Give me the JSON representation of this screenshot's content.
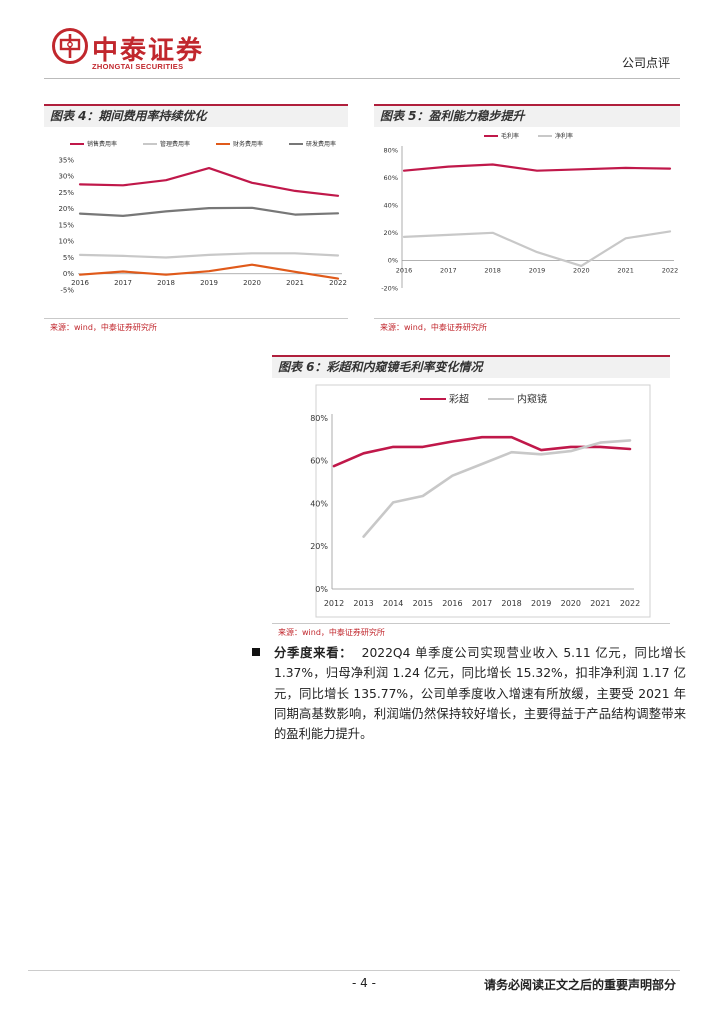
{
  "header": {
    "company_cn": "中泰证券",
    "company_en": "ZHONGTAI SECURITIES",
    "doc_type": "公司点评",
    "brand_color": "#c1272d"
  },
  "figures": {
    "fig4": {
      "title": "图表 4：期间费用率持续优化",
      "source": "来源：wind，中泰证券研究所"
    },
    "fig5": {
      "title": "图表 5：盈利能力稳步提升",
      "source": "来源：wind，中泰证券研究所"
    },
    "fig6": {
      "title": "图表 6：彩超和内窥镜毛利率变化情况",
      "source": "来源：wind，中泰证券研究所"
    }
  },
  "chart_data": [
    {
      "id": "fig4",
      "type": "line",
      "x": [
        "2016",
        "2017",
        "2018",
        "2019",
        "2020",
        "2021",
        "2022"
      ],
      "series": [
        {
          "name": "销售费用率",
          "color": "#c0184a",
          "values": [
            27.5,
            27.2,
            28.8,
            32.5,
            28.0,
            25.5,
            24.0
          ]
        },
        {
          "name": "管理费用率",
          "color": "#c8c8c8",
          "values": [
            5.8,
            5.5,
            5.0,
            5.8,
            6.3,
            6.3,
            5.6
          ]
        },
        {
          "name": "财务费用率",
          "color": "#e05a1a",
          "values": [
            -0.3,
            0.7,
            -0.3,
            0.8,
            2.8,
            0.6,
            -1.5
          ]
        },
        {
          "name": "研发费用率",
          "color": "#777777",
          "values": [
            18.5,
            17.8,
            19.2,
            20.2,
            20.3,
            18.2,
            18.6
          ]
        }
      ],
      "yticks": [
        "-5%",
        "0%",
        "5%",
        "10%",
        "15%",
        "20%",
        "25%",
        "30%",
        "35%"
      ],
      "ylim": [
        -5,
        35
      ],
      "legend": "top"
    },
    {
      "id": "fig5",
      "type": "line",
      "x": [
        "2016",
        "2017",
        "2018",
        "2019",
        "2020",
        "2021",
        "2022"
      ],
      "series": [
        {
          "name": "毛利率",
          "color": "#c0184a",
          "values": [
            65,
            68,
            69.5,
            65,
            66,
            67,
            66.5
          ]
        },
        {
          "name": "净利率",
          "color": "#c8c8c8",
          "values": [
            17,
            18.5,
            20,
            6,
            -4,
            16,
            21
          ]
        }
      ],
      "yticks": [
        "-20%",
        "0%",
        "20%",
        "40%",
        "60%",
        "80%"
      ],
      "ylim": [
        -20,
        80
      ],
      "legend": "top"
    },
    {
      "id": "fig6",
      "type": "line",
      "x": [
        "2012",
        "2013",
        "2014",
        "2015",
        "2016",
        "2017",
        "2018",
        "2019",
        "2020",
        "2021",
        "2022"
      ],
      "series": [
        {
          "name": "彩超",
          "color": "#c0184a",
          "values": [
            57.5,
            63.5,
            66.5,
            66.5,
            69,
            71,
            71,
            65,
            66.5,
            66.5,
            65.5
          ]
        },
        {
          "name": "内窥镜",
          "color": "#c8c8c8",
          "values": [
            null,
            24.5,
            40.5,
            43.5,
            53,
            58.5,
            64,
            63,
            64.5,
            68.5,
            69.5
          ]
        }
      ],
      "yticks": [
        "0%",
        "20%",
        "40%",
        "60%",
        "80%"
      ],
      "ylim": [
        0,
        80
      ],
      "legend": "top"
    }
  ],
  "paragraph": {
    "lead": "分季度来看：",
    "body": "2022Q4 单季度公司实现营业收入 5.11 亿元，同比增长 1.37%，归母净利润 1.24 亿元，同比增长 15.32%，扣非净利润 1.17 亿元，同比增长 135.77%，公司单季度收入增速有所放缓，主要受 2021 年同期高基数影响，利润端仍然保持较好增长，主要得益于产品结构调整带来的盈利能力提升。"
  },
  "footer": {
    "page": "- 4 -",
    "disclaimer": "请务必阅读正文之后的重要声明部分"
  }
}
